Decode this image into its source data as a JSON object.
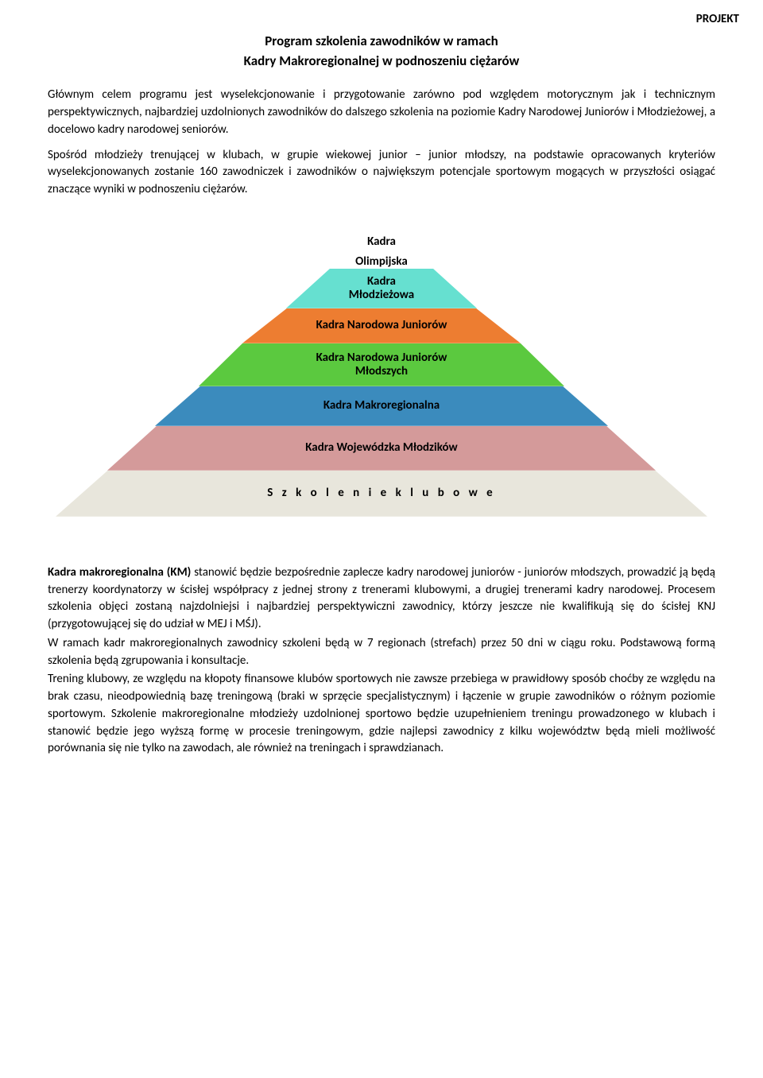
{
  "header": {
    "projekt": "PROJEKT",
    "title_line1": "Program szkolenia zawodników w ramach",
    "title_line2": "Kadry Makroregionalnej w podnoszeniu ciężarów"
  },
  "intro": {
    "p1": "Głównym celem programu jest wyselekcjonowanie i przygotowanie zarówno pod względem motorycznym jak i technicznym perspektywicznych, najbardziej uzdolnionych zawodników do dalszego szkolenia na poziomie Kadry Narodowej Juniorów i Młodzieżowej, a docelowo kadry narodowej seniorów.",
    "p2": "Spośród młodzieży trenującej w klubach, w grupie wiekowej junior – junior młodszy, na podstawie opracowanych kryteriów wyselekcjonowanych zostanie 160 zawodniczek i zawodników o największym potencjale sportowym mogących w przyszłości osiągać znaczące wyniki w podnoszeniu ciężarów."
  },
  "pyramid": {
    "levels": [
      {
        "label_a": "Kadra",
        "label_b": "Olimpijska",
        "bg": "#ffffff",
        "accent": "#ed7d31"
      },
      {
        "label_a": "Kadra",
        "label_b": "Młodzieżowa",
        "bg": "#66e0d0"
      },
      {
        "label": "Kadra Narodowa Juniorów",
        "bg": "#ed7d31"
      },
      {
        "label_a": "Kadra Narodowa Juniorów",
        "label_b": "Młodszych",
        "bg": "#5bc93f"
      },
      {
        "label": "Kadra Makroregionalna",
        "bg": "#3b8bbd"
      },
      {
        "label": "Kadra Wojewódzka Młodzików",
        "bg": "#d49a9a"
      },
      {
        "label": "S z k o l e n i e     k l u b o w e",
        "bg": "#e8e6dc"
      }
    ]
  },
  "body2": {
    "p1": "Kadra makroregionalna (KM) stanowić będzie bezpośrednie zaplecze kadry narodowej juniorów - juniorów młodszych, prowadzić ją będą trenerzy koordynatorzy w ścisłej współpracy z jednej strony z trenerami klubowymi, a drugiej trenerami kadry narodowej. Procesem szkolenia objęci zostaną najzdolniejsi i najbardziej perspektywiczni zawodnicy, którzy jeszcze nie kwalifikują się do ścisłej KNJ (przygotowującej się do udział w MEJ i MŚJ).",
    "p2": "W ramach kadr makroregionalnych zawodnicy szkoleni będą w 7 regionach (strefach) przez 50 dni w ciągu roku. Podstawową formą szkolenia będą zgrupowania i konsultacje.",
    "p3": "Trening klubowy, ze względu na kłopoty finansowe klubów sportowych nie zawsze przebiega w prawidłowy sposób choćby ze względu na brak czasu, nieodpowiednią bazę treningową (braki w sprzęcie specjalistycznym) i łączenie w grupie zawodników o różnym poziomie sportowym. Szkolenie makroregionalne młodzieży uzdolnionej sportowo będzie uzupełnieniem treningu prowadzonego w klubach i stanowić będzie jego wyższą formę w procesie treningowym, gdzie najlepsi zawodnicy z kilku województw będą mieli możliwość porównania się nie tylko na zawodach, ale również na treningach i sprawdzianach."
  },
  "bold_lead": "Kadra makroregionalna (KM)"
}
